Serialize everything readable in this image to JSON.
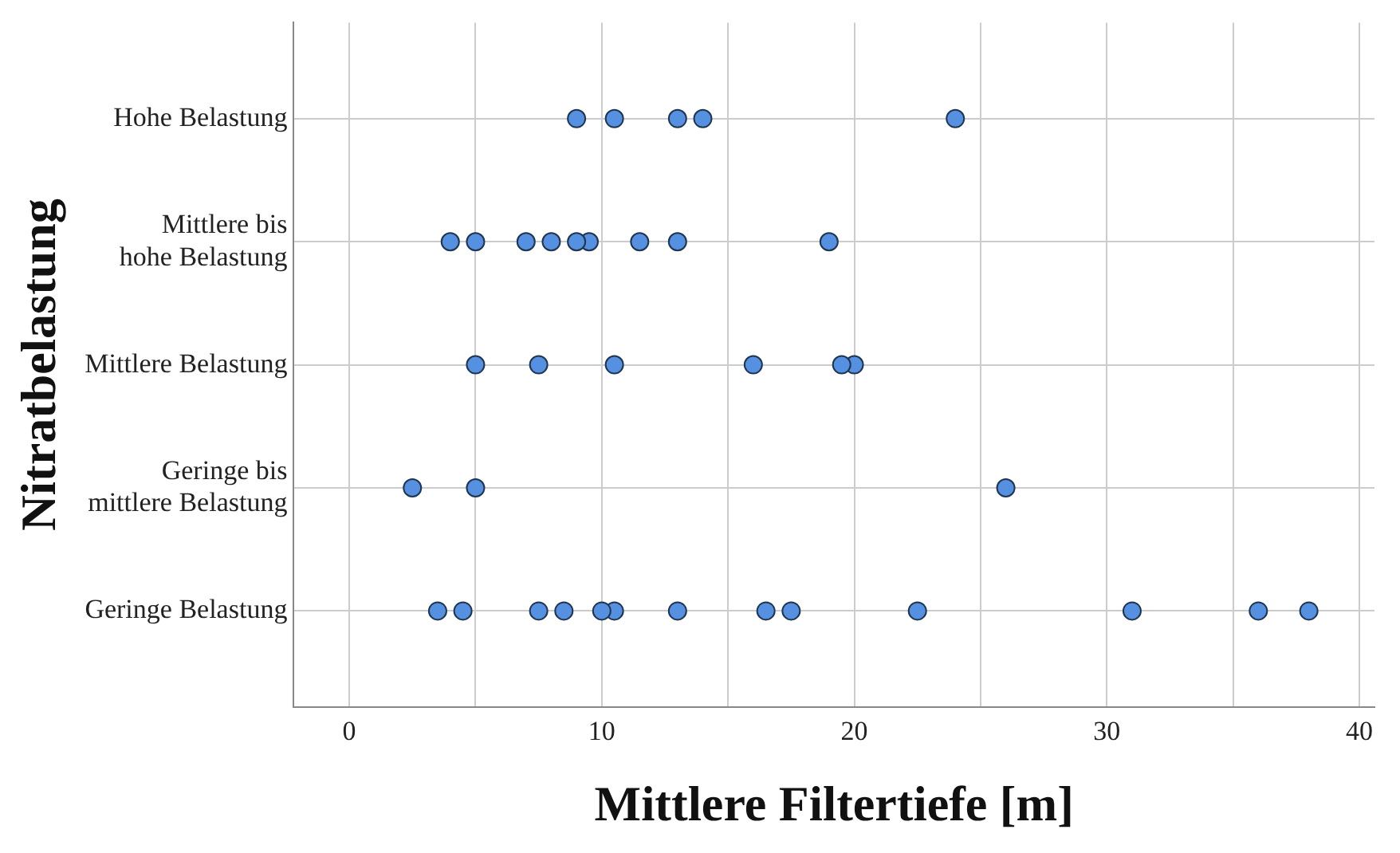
{
  "chart_data": {
    "type": "scatter",
    "orientation": "horizontal",
    "xlabel": "Mittlere Filtertiefe [m]",
    "ylabel": "Nitratbelastung",
    "categories": [
      "Hohe Belastung",
      "Mittlere bis\nhohe Belastung",
      "Mittlere Belastung",
      "Geringe bis\nmittlere Belastung",
      "Geringe Belastung"
    ],
    "series": [
      {
        "color": "#5591e0",
        "values": [
          9,
          4,
          5,
          2.5,
          3.5
        ]
      },
      {
        "color": "#5591e0",
        "values": [
          10.5,
          5,
          7.5,
          5,
          4.5
        ]
      },
      {
        "color": "#5591e0",
        "values": [
          13,
          7,
          10.5,
          26,
          7.5
        ]
      },
      {
        "color": "#5591e0",
        "values": [
          14,
          8,
          16,
          null,
          8.5
        ]
      },
      {
        "color": "#5591e0",
        "values": [
          24,
          9,
          19.5,
          null,
          10
        ]
      },
      {
        "color": "#5591e0",
        "values": [
          null,
          9.5,
          20,
          null,
          10.5
        ]
      },
      {
        "color": "#5591e0",
        "values": [
          null,
          11.5,
          null,
          null,
          13
        ]
      },
      {
        "color": "#5591e0",
        "values": [
          null,
          13,
          null,
          null,
          16.5
        ]
      },
      {
        "color": "#5591e0",
        "values": [
          null,
          19,
          null,
          null,
          17.5
        ]
      },
      {
        "color": "#5591e0",
        "values": [
          null,
          null,
          null,
          null,
          22.5
        ]
      },
      {
        "color": "#5591e0",
        "values": [
          null,
          null,
          null,
          null,
          31
        ]
      },
      {
        "color": "#5591e0",
        "values": [
          null,
          null,
          null,
          null,
          36
        ]
      },
      {
        "color": "#5591e0",
        "values": [
          null,
          null,
          null,
          null,
          38
        ]
      }
    ],
    "xlim": [
      -2.2,
      40.6
    ],
    "xticks": [
      0,
      {
        "value": 5,
        "label": null
      },
      10,
      {
        "value": 15,
        "label": null
      },
      20,
      {
        "value": 25,
        "label": null
      },
      30,
      {
        "value": 35,
        "label": null
      },
      40
    ],
    "grid": true,
    "marker": "circle",
    "legend": false
  }
}
